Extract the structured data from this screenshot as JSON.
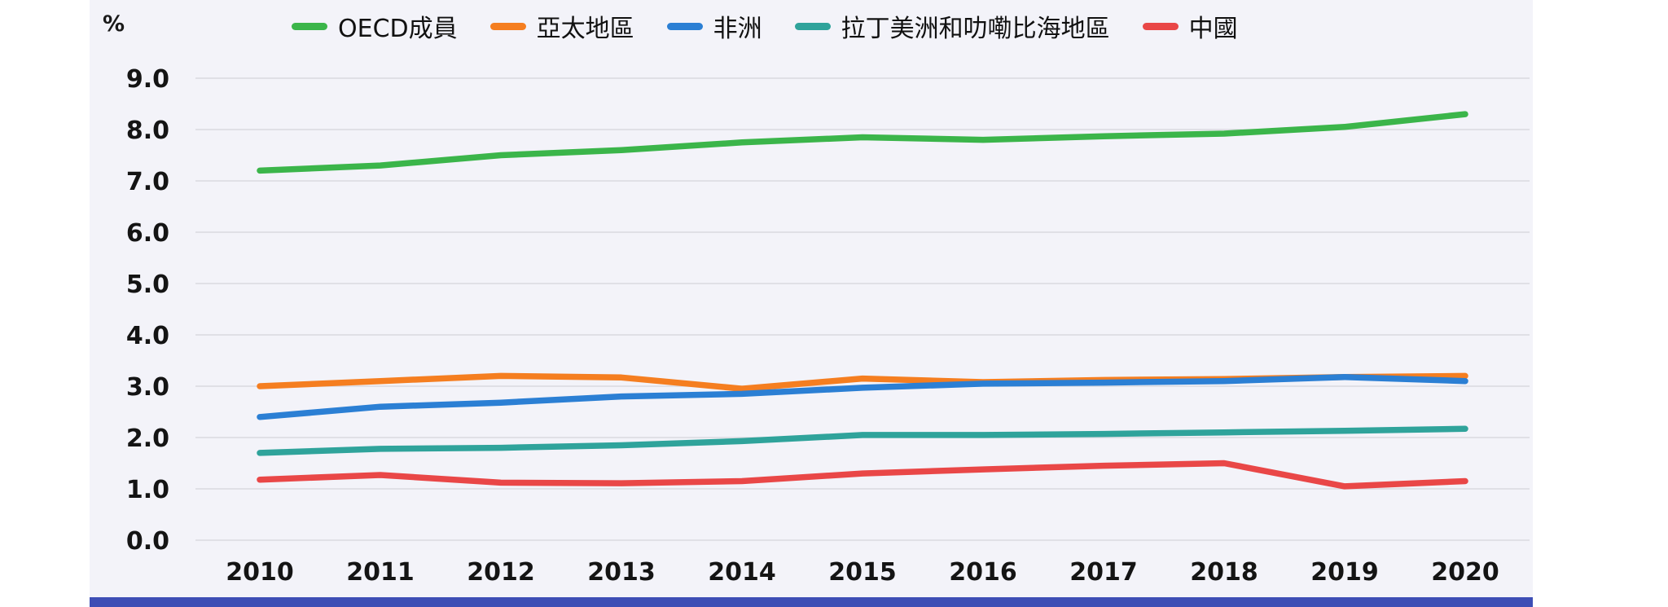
{
  "chart": {
    "unit_label": "%",
    "background_color": "#f3f3f9",
    "accent_bar_color": "#3d4eb5",
    "gridline_color": "#d9d9e0",
    "text_color": "#141414"
  },
  "chart_data": {
    "type": "line",
    "title": "",
    "ylabel": "%",
    "xlabel": "",
    "categories": [
      "2010",
      "2011",
      "2012",
      "2013",
      "2014",
      "2015",
      "2016",
      "2017",
      "2018",
      "2019",
      "2020"
    ],
    "yticks": [
      "0.0",
      "1.0",
      "2.0",
      "3.0",
      "4.0",
      "5.0",
      "6.0",
      "7.0",
      "8.0",
      "9.0"
    ],
    "ylim": [
      0.0,
      9.0
    ],
    "grid": true,
    "legend_position": "top",
    "series": [
      {
        "name": "OECD成員",
        "color": "#3bb54a",
        "values": [
          7.2,
          7.3,
          7.5,
          7.6,
          7.75,
          7.85,
          7.8,
          7.87,
          7.92,
          8.05,
          8.3
        ]
      },
      {
        "name": "亞太地區",
        "color": "#f57e20",
        "values": [
          3.0,
          3.1,
          3.2,
          3.17,
          2.95,
          3.15,
          3.08,
          3.12,
          3.14,
          3.18,
          3.2
        ]
      },
      {
        "name": "非洲",
        "color": "#2b7fd4",
        "values": [
          2.4,
          2.6,
          2.68,
          2.8,
          2.85,
          2.97,
          3.05,
          3.07,
          3.1,
          3.18,
          3.1
        ]
      },
      {
        "name": "拉丁美洲和叻嘞比海地區",
        "color": "#2fa39b",
        "values": [
          1.7,
          1.78,
          1.8,
          1.85,
          1.93,
          2.05,
          2.05,
          2.07,
          2.1,
          2.13,
          2.17
        ]
      },
      {
        "name": "中國",
        "color": "#e94747",
        "values": [
          1.18,
          1.27,
          1.12,
          1.11,
          1.15,
          1.3,
          1.38,
          1.45,
          1.5,
          1.05,
          1.15
        ]
      }
    ]
  }
}
